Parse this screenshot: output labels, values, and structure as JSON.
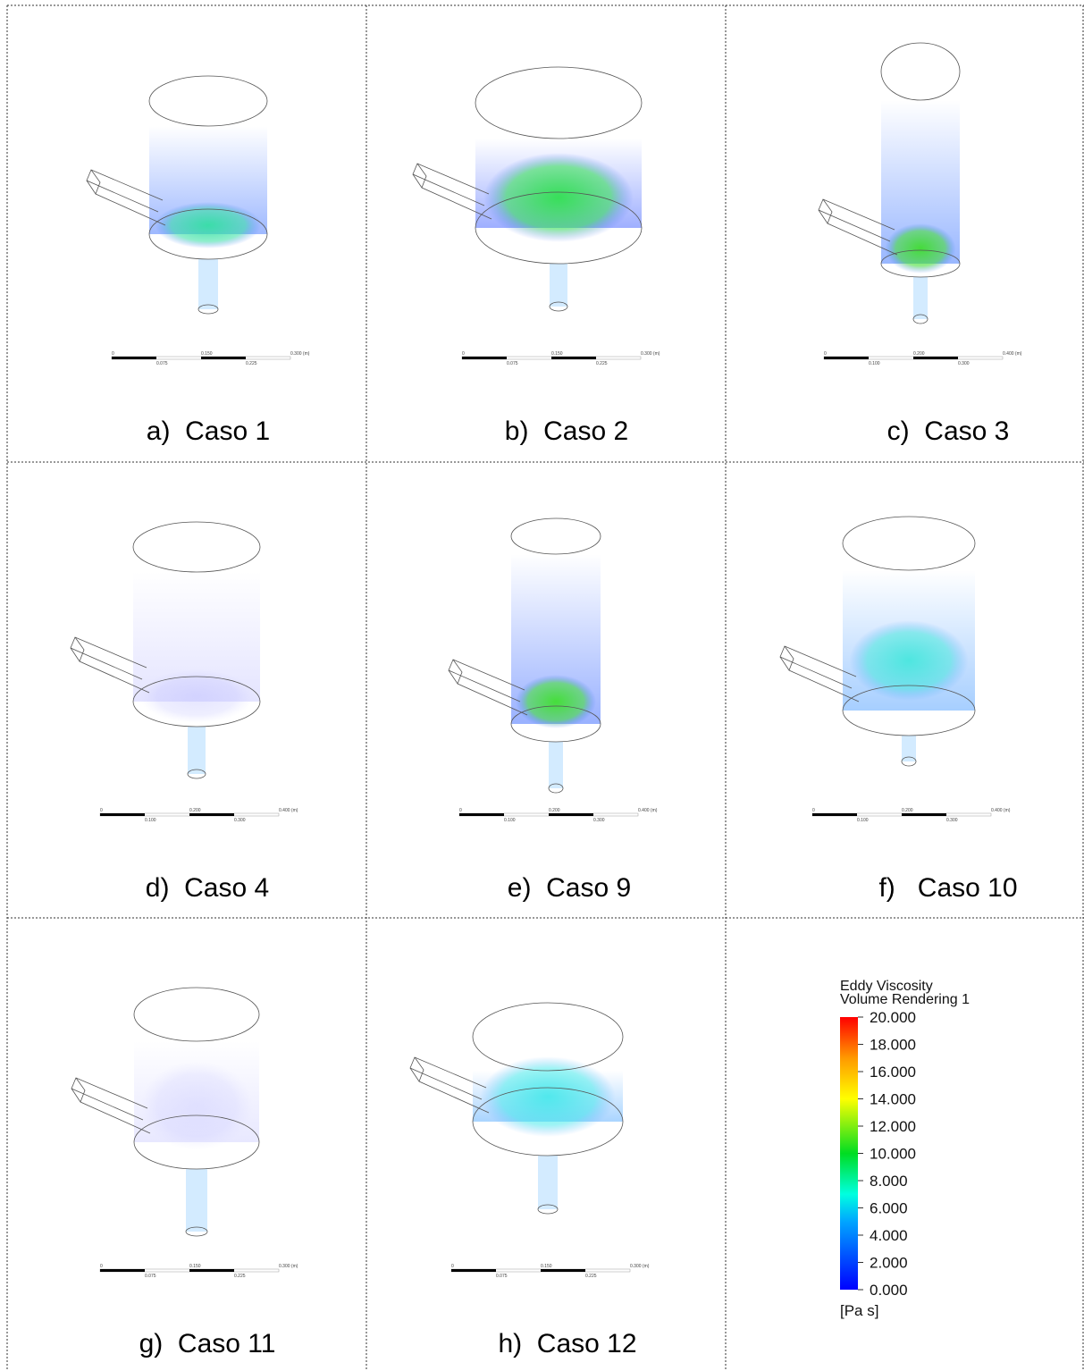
{
  "panels": [
    {
      "caption": "a)  Caso 1",
      "scale_bar": {
        "labels": [
          "0",
          "0.150",
          "0.300 (m)"
        ],
        "sublabels": [
          "0.075",
          "0.225"
        ]
      }
    },
    {
      "caption": "b)  Caso 2",
      "scale_bar": {
        "labels": [
          "0",
          "0.150",
          "0.300 (m)"
        ],
        "sublabels": [
          "0.075",
          "0.225"
        ]
      }
    },
    {
      "caption": "c)  Caso 3",
      "scale_bar": {
        "labels": [
          "0",
          "0.200",
          "0.400 (m)"
        ],
        "sublabels": [
          "0.100",
          "0.300"
        ]
      }
    },
    {
      "caption": "d)  Caso 4",
      "scale_bar": {
        "labels": [
          "0",
          "0.200",
          "0.400 (m)"
        ],
        "sublabels": [
          "0.100",
          "0.300"
        ]
      }
    },
    {
      "caption": "e)  Caso 9",
      "scale_bar": {
        "labels": [
          "0",
          "0.200",
          "0.400 (m)"
        ],
        "sublabels": [
          "0.100",
          "0.300"
        ]
      }
    },
    {
      "caption": "f)   Caso 10",
      "scale_bar": {
        "labels": [
          "0",
          "0.200",
          "0.400 (m)"
        ],
        "sublabels": [
          "0.100",
          "0.300"
        ]
      }
    },
    {
      "caption": "g)  Caso 11",
      "scale_bar": {
        "labels": [
          "0",
          "0.150",
          "0.300 (m)"
        ],
        "sublabels": [
          "0.075",
          "0.225"
        ]
      }
    },
    {
      "caption": "h)  Caso 12",
      "scale_bar": {
        "labels": [
          "0",
          "0.150",
          "0.300 (m)"
        ],
        "sublabels": [
          "0.075",
          "0.225"
        ]
      }
    }
  ],
  "colorbar": {
    "title": [
      "Eddy Viscosity",
      "Volume Rendering 1"
    ],
    "unit": "[Pa s]",
    "lim": [
      0,
      20
    ],
    "ticks": [
      {
        "value": 20,
        "label": "20.000"
      },
      {
        "value": 18,
        "label": "18.000"
      },
      {
        "value": 16,
        "label": "16.000"
      },
      {
        "value": 14,
        "label": "14.000"
      },
      {
        "value": 12,
        "label": "12.000"
      },
      {
        "value": 10,
        "label": "10.000"
      },
      {
        "value": 8,
        "label": "8.000"
      },
      {
        "value": 6,
        "label": "6.000"
      },
      {
        "value": 4,
        "label": "4.000"
      },
      {
        "value": 2,
        "label": "2.000"
      },
      {
        "value": 0,
        "label": "0.000"
      }
    ]
  }
}
